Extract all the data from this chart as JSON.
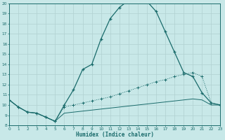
{
  "xlabel": "Humidex (Indice chaleur)",
  "bg_color": "#c8e8e8",
  "line_color": "#1a6b6b",
  "grid_color": "#b0d0d0",
  "xlim": [
    0,
    23
  ],
  "ylim": [
    8,
    20
  ],
  "ytick_vals": [
    8,
    9,
    10,
    11,
    12,
    13,
    14,
    15,
    16,
    17,
    18,
    19,
    20
  ],
  "xtick_vals": [
    0,
    1,
    2,
    3,
    4,
    5,
    6,
    7,
    8,
    9,
    10,
    11,
    12,
    13,
    14,
    15,
    16,
    17,
    18,
    19,
    20,
    21,
    22,
    23
  ],
  "curve1_x": [
    0,
    1,
    2,
    3,
    4,
    5,
    6,
    7,
    8,
    9,
    10,
    11,
    12,
    13,
    14,
    15,
    16,
    17,
    18,
    19,
    20,
    21,
    22,
    23
  ],
  "curve1_y": [
    10.5,
    9.8,
    9.3,
    9.2,
    8.8,
    8.4,
    10.0,
    11.5,
    13.5,
    14.0,
    16.5,
    18.5,
    19.6,
    20.3,
    20.3,
    20.2,
    19.2,
    17.2,
    15.2,
    13.2,
    12.8,
    11.2,
    10.2,
    10.0
  ],
  "curve2_x": [
    0,
    1,
    2,
    3,
    4,
    5,
    6,
    7,
    8,
    9,
    10,
    11,
    12,
    13,
    14,
    15,
    16,
    17,
    18,
    19,
    20,
    21,
    22,
    23
  ],
  "curve2_y": [
    10.5,
    9.8,
    9.3,
    9.2,
    8.8,
    8.4,
    9.8,
    10.0,
    10.2,
    10.4,
    10.6,
    10.8,
    11.1,
    11.4,
    11.7,
    12.0,
    12.3,
    12.5,
    12.8,
    13.0,
    13.2,
    12.8,
    10.2,
    10.0
  ],
  "curve3_x": [
    0,
    1,
    2,
    3,
    4,
    5,
    6,
    7,
    8,
    9,
    10,
    11,
    12,
    13,
    14,
    15,
    16,
    17,
    18,
    19,
    20,
    21,
    22,
    23
  ],
  "curve3_y": [
    10.5,
    9.8,
    9.3,
    9.2,
    8.8,
    8.4,
    9.2,
    9.3,
    9.4,
    9.5,
    9.6,
    9.7,
    9.8,
    9.9,
    10.0,
    10.1,
    10.2,
    10.3,
    10.4,
    10.5,
    10.6,
    10.5,
    10.0,
    10.0
  ]
}
